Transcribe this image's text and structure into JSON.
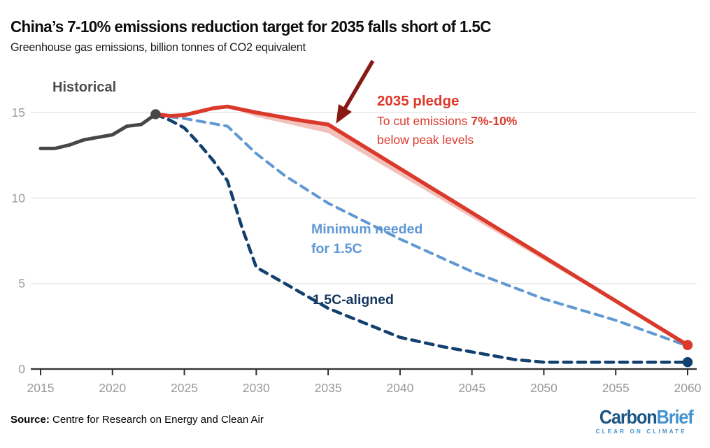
{
  "header": {
    "title": "China’s 7-10% emissions reduction target for 2035 falls short of 1.5C",
    "subtitle": "Greenhouse gas emissions, billion tonnes of CO2 equivalent"
  },
  "annotations": {
    "historical": "Historical",
    "pledge_title": "2035 pledge",
    "pledge_line2_normal": "To cut emissions ",
    "pledge_line2_bold": "7%-10%",
    "pledge_line3": "below peak levels",
    "minimum_line1": "Minimum needed",
    "minimum_line2": "for 1.5C",
    "aligned": "1.5C-aligned"
  },
  "footer": {
    "source_label": "Source:",
    "source_text": " Centre for Research on Energy and Clean Air",
    "logo_part1": "Carbon",
    "logo_part2": "Brief",
    "logo_tagline": "CLEAR ON CLIMATE"
  },
  "colors": {
    "historical": "#474747",
    "pledge": "#da392b",
    "pledge_band": "#f3c1bb",
    "minimum": "#5f98d3",
    "aligned": "#12406f",
    "arrow": "#871a15",
    "grid": "#e9e9e9",
    "axis": "#2f2f2f",
    "tick_text": "#9a9a9a",
    "logo_dark_blue": "#1c5685",
    "logo_light_blue": "#4493cf"
  },
  "chart_data": {
    "type": "line",
    "title": "China’s 7-10% emissions reduction target for 2035 falls short of 1.5C",
    "ylabel": "Greenhouse gas emissions, billion tonnes of CO2 equivalent",
    "x_ticks": [
      2015,
      2020,
      2025,
      2030,
      2035,
      2040,
      2045,
      2050,
      2055,
      2060
    ],
    "y_ticks": [
      0,
      5,
      10,
      15
    ],
    "x_range": [
      2015,
      2060
    ],
    "y_range": [
      0,
      15
    ],
    "grid": "horizontal-only",
    "legend_position": "inline-annotations",
    "series": [
      {
        "name": "Historical",
        "style": "solid",
        "width": 5,
        "color": "#474747",
        "end_dot": true,
        "points": [
          [
            2015,
            12.9
          ],
          [
            2016,
            12.9
          ],
          [
            2017,
            13.1
          ],
          [
            2018,
            13.4
          ],
          [
            2019,
            13.55
          ],
          [
            2020,
            13.7
          ],
          [
            2021,
            14.2
          ],
          [
            2022,
            14.3
          ],
          [
            2023,
            14.9
          ]
        ]
      },
      {
        "name": "2035 pledge",
        "style": "solid",
        "width": 5.5,
        "color": "#da392b",
        "end_dot": true,
        "points": [
          [
            2023,
            14.9
          ],
          [
            2024,
            14.8
          ],
          [
            2025,
            14.85
          ],
          [
            2026,
            15.05
          ],
          [
            2027,
            15.25
          ],
          [
            2028,
            15.35
          ],
          [
            2030,
            15.0
          ],
          [
            2033,
            14.55
          ],
          [
            2035,
            14.3
          ],
          [
            2060,
            1.4
          ]
        ]
      },
      {
        "name": "Minimum needed for 1.5C",
        "style": "dashed",
        "width": 4,
        "color": "#5f98d3",
        "end_dot": false,
        "points": [
          [
            2023,
            14.9
          ],
          [
            2024,
            14.75
          ],
          [
            2025,
            14.65
          ],
          [
            2026,
            14.5
          ],
          [
            2027,
            14.35
          ],
          [
            2028,
            14.2
          ],
          [
            2029,
            13.4
          ],
          [
            2030,
            12.6
          ],
          [
            2032,
            11.3
          ],
          [
            2035,
            9.7
          ],
          [
            2040,
            7.6
          ],
          [
            2045,
            5.7
          ],
          [
            2050,
            4.1
          ],
          [
            2055,
            2.85
          ],
          [
            2060,
            1.35
          ]
        ]
      },
      {
        "name": "1.5C-aligned",
        "style": "dashed",
        "width": 4.5,
        "color": "#12406f",
        "end_dot": true,
        "points": [
          [
            2023,
            14.9
          ],
          [
            2024,
            14.55
          ],
          [
            2025,
            14.1
          ],
          [
            2026,
            13.2
          ],
          [
            2027,
            12.2
          ],
          [
            2028,
            11.0
          ],
          [
            2029,
            8.3
          ],
          [
            2030,
            5.95
          ],
          [
            2032,
            5.0
          ],
          [
            2035,
            3.55
          ],
          [
            2040,
            1.85
          ],
          [
            2043,
            1.3
          ],
          [
            2045,
            1.0
          ],
          [
            2048,
            0.55
          ],
          [
            2050,
            0.4
          ],
          [
            2055,
            0.4
          ],
          [
            2060,
            0.4
          ]
        ]
      }
    ],
    "pledge_band": {
      "meaning": "range between 7% and 10% cut below peak levels",
      "color": "#f3c1bb",
      "upper": [
        [
          2028,
          15.35
        ],
        [
          2030,
          15.0
        ],
        [
          2033,
          14.55
        ],
        [
          2035,
          14.3
        ],
        [
          2060,
          1.4
        ]
      ],
      "lower": [
        [
          2028,
          15.3
        ],
        [
          2030,
          14.75
        ],
        [
          2035,
          13.8
        ],
        [
          2060,
          1.4
        ]
      ]
    }
  }
}
